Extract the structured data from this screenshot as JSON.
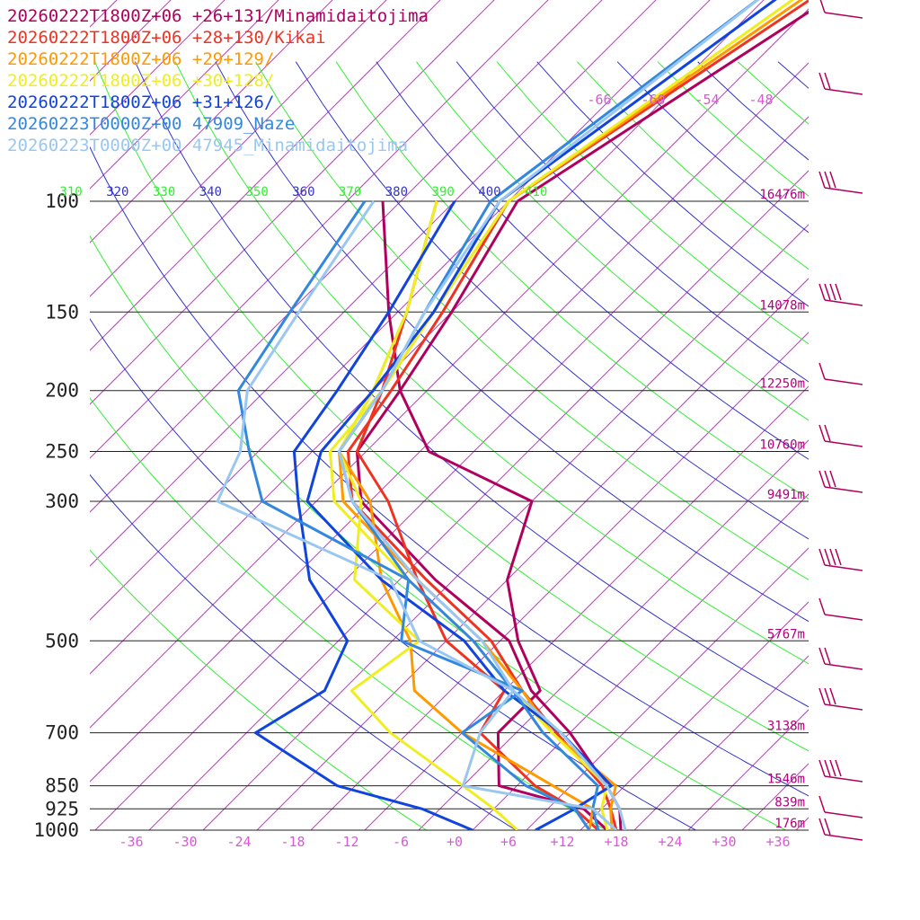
{
  "chart_data": {
    "type": "line",
    "title": "",
    "xlabel": "",
    "ylabel": "",
    "ylim": [
      1000,
      100
    ],
    "xlim": [
      -40,
      40
    ],
    "pressure_levels": [
      {
        "label": "100",
        "p": 100,
        "height": "16476m"
      },
      {
        "label": "150",
        "p": 150,
        "height": "14078m"
      },
      {
        "label": "200",
        "p": 200,
        "height": "12250m"
      },
      {
        "label": "250",
        "p": 250,
        "height": "10760m"
      },
      {
        "label": "300",
        "p": 300,
        "height": "9491m"
      },
      {
        "label": "500",
        "p": 500,
        "height": "5767m"
      },
      {
        "label": "700",
        "p": 700,
        "height": "3138m"
      },
      {
        "label": "850",
        "p": 850,
        "height": "1546m"
      },
      {
        "label": "925",
        "p": 925,
        "height": "839m"
      },
      {
        "label": "1000",
        "p": 1000,
        "height": "176m"
      }
    ],
    "temperature_ticks": [
      "-36",
      "-30",
      "-24",
      "-18",
      "-12",
      "-6",
      "+0",
      "+6",
      "+12",
      "+18",
      "+24",
      "+30",
      "+36"
    ],
    "temperature_tick_values": [
      -36,
      -30,
      -24,
      -18,
      -12,
      -6,
      0,
      6,
      12,
      18,
      24,
      30,
      36
    ],
    "theta_ticks": [
      "310",
      "320",
      "330",
      "340",
      "350",
      "360",
      "370",
      "380",
      "390",
      "400",
      "410"
    ],
    "mixing_ticks": [
      "-66",
      "-60",
      "-54",
      "-48"
    ],
    "grid": true,
    "legend_position": "top-left",
    "series": [
      {
        "name": "20260222T1800Z+06 +26+131/Minamidaitojima",
        "color": "#b0005e",
        "temperature": [
          [
            1000,
            18.5
          ],
          [
            925,
            16
          ],
          [
            850,
            12
          ],
          [
            700,
            2
          ],
          [
            600,
            -7
          ],
          [
            500,
            -15
          ],
          [
            400,
            -30
          ],
          [
            300,
            -47
          ],
          [
            250,
            -53
          ],
          [
            200,
            -55
          ],
          [
            150,
            -58
          ],
          [
            100,
            -63
          ]
        ],
        "dewpoint": [
          [
            1000,
            17
          ],
          [
            925,
            12
          ],
          [
            850,
            0
          ],
          [
            700,
            -6
          ],
          [
            600,
            -6
          ],
          [
            500,
            -14
          ],
          [
            400,
            -22
          ],
          [
            300,
            -28
          ],
          [
            250,
            -45
          ],
          [
            200,
            -55
          ],
          [
            150,
            -65
          ],
          [
            100,
            -78
          ]
        ]
      },
      {
        "name": "20260222T1800Z+06 +28+130/Kikai",
        "color": "#ee3322",
        "temperature": [
          [
            1000,
            18
          ],
          [
            925,
            15
          ],
          [
            850,
            11.5
          ],
          [
            700,
            0.5
          ],
          [
            600,
            -8
          ],
          [
            500,
            -17
          ],
          [
            400,
            -31
          ],
          [
            300,
            -48
          ],
          [
            250,
            -54
          ],
          [
            200,
            -56
          ],
          [
            150,
            -59
          ],
          [
            100,
            -64
          ]
        ],
        "dewpoint": [
          [
            1000,
            16
          ],
          [
            925,
            11
          ],
          [
            850,
            4
          ],
          [
            700,
            -8
          ],
          [
            600,
            -10
          ],
          [
            500,
            -22
          ],
          [
            400,
            -32
          ],
          [
            300,
            -44
          ],
          [
            250,
            -53
          ],
          [
            200,
            -57
          ],
          [
            150,
            -63
          ],
          [
            100,
            -72
          ]
        ]
      },
      {
        "name": "20260222T1800Z+06 +29+129/",
        "color": "#ff9900",
        "temperature": [
          [
            1000,
            17.5
          ],
          [
            925,
            15
          ],
          [
            850,
            13
          ],
          [
            700,
            0
          ],
          [
            600,
            -8
          ],
          [
            500,
            -18
          ],
          [
            400,
            -32
          ],
          [
            300,
            -49
          ],
          [
            250,
            -55
          ],
          [
            200,
            -57
          ],
          [
            150,
            -60
          ],
          [
            100,
            -64
          ]
        ],
        "dewpoint": [
          [
            1000,
            15
          ],
          [
            925,
            13
          ],
          [
            850,
            6
          ],
          [
            700,
            -10
          ],
          [
            600,
            -20
          ],
          [
            500,
            -26
          ],
          [
            400,
            -36
          ],
          [
            300,
            -46
          ],
          [
            250,
            -55
          ],
          [
            200,
            -58
          ],
          [
            150,
            -63
          ],
          [
            100,
            -72
          ]
        ]
      },
      {
        "name": "20260222T1800Z+06 +30+128/",
        "color": "#eeee22",
        "temperature": [
          [
            1000,
            17
          ],
          [
            925,
            14
          ],
          [
            850,
            12
          ],
          [
            700,
            0
          ],
          [
            600,
            -9
          ],
          [
            500,
            -19
          ],
          [
            400,
            -33
          ],
          [
            300,
            -50
          ],
          [
            250,
            -56
          ],
          [
            200,
            -57
          ],
          [
            150,
            -60
          ],
          [
            100,
            -64
          ]
        ],
        "dewpoint": [
          [
            1000,
            7
          ],
          [
            925,
            2
          ],
          [
            850,
            -4
          ],
          [
            700,
            -18
          ],
          [
            600,
            -27
          ],
          [
            500,
            -25
          ],
          [
            400,
            -39
          ],
          [
            300,
            -47
          ],
          [
            250,
            -55
          ],
          [
            200,
            -58
          ],
          [
            150,
            -63
          ],
          [
            100,
            -72
          ]
        ]
      },
      {
        "name": "20260222T1800Z+06 +31+126/",
        "color": "#1144dd",
        "temperature": [
          [
            1000,
            9
          ],
          [
            925,
            11
          ],
          [
            850,
            12.5
          ],
          [
            700,
            1
          ],
          [
            600,
            -10
          ],
          [
            500,
            -20
          ],
          [
            400,
            -36
          ],
          [
            300,
            -53
          ],
          [
            250,
            -57
          ],
          [
            200,
            -58
          ],
          [
            150,
            -60
          ],
          [
            100,
            -65
          ]
        ],
        "dewpoint": [
          [
            1000,
            2
          ],
          [
            925,
            -6
          ],
          [
            850,
            -18
          ],
          [
            700,
            -33
          ],
          [
            600,
            -30
          ],
          [
            500,
            -33
          ],
          [
            400,
            -44
          ],
          [
            300,
            -54
          ],
          [
            250,
            -60
          ],
          [
            200,
            -62
          ],
          [
            150,
            -65
          ],
          [
            100,
            -70
          ]
        ]
      },
      {
        "name": "20260223T0000Z+00 47909_Naze",
        "color": "#3388dd",
        "temperature": [
          [
            1000,
            16
          ],
          [
            925,
            13
          ],
          [
            850,
            11
          ],
          [
            700,
            -1
          ],
          [
            600,
            -9
          ],
          [
            500,
            -19
          ],
          [
            400,
            -33
          ],
          [
            300,
            -48
          ],
          [
            250,
            -55
          ],
          [
            200,
            -57
          ],
          [
            150,
            -61
          ],
          [
            100,
            -66
          ]
        ],
        "dewpoint": [
          [
            1000,
            15
          ],
          [
            925,
            11
          ],
          [
            850,
            3
          ],
          [
            700,
            -10
          ],
          [
            600,
            -8
          ],
          [
            500,
            -27
          ],
          [
            400,
            -33
          ],
          [
            300,
            -58
          ],
          [
            250,
            -65
          ],
          [
            200,
            -73
          ],
          [
            150,
            -76
          ],
          [
            100,
            -80
          ]
        ]
      },
      {
        "name": "20260223T0000Z+00 47945_Minamidaitojima",
        "color": "#99c7f0",
        "temperature": [
          [
            1000,
            19
          ],
          [
            925,
            16
          ],
          [
            850,
            12
          ],
          [
            700,
            1
          ],
          [
            600,
            -9
          ],
          [
            500,
            -18
          ],
          [
            400,
            -32
          ],
          [
            300,
            -48
          ],
          [
            250,
            -55
          ],
          [
            200,
            -57
          ],
          [
            150,
            -61
          ],
          [
            100,
            -65
          ]
        ],
        "dewpoint": [
          [
            1000,
            18
          ],
          [
            925,
            13
          ],
          [
            850,
            -4
          ],
          [
            700,
            -8
          ],
          [
            600,
            -9
          ],
          [
            500,
            -25
          ],
          [
            400,
            -35
          ],
          [
            300,
            -63
          ],
          [
            250,
            -66
          ],
          [
            200,
            -72
          ],
          [
            150,
            -75
          ],
          [
            100,
            -79
          ]
        ]
      }
    ]
  },
  "legend": [
    {
      "label": "20260222T1800Z+06 +26+131/Minamidaitojima",
      "color": "#b0005e"
    },
    {
      "label": "20260222T1800Z+06 +28+130/Kikai",
      "color": "#ee3322"
    },
    {
      "label": "20260222T1800Z+06 +29+129/",
      "color": "#ff9900"
    },
    {
      "label": "20260222T1800Z+06 +30+128/",
      "color": "#eeee22"
    },
    {
      "label": "20260222T1800Z+06 +31+126/",
      "color": "#1144dd"
    },
    {
      "label": "20260223T0000Z+00 47909_Naze",
      "color": "#3388dd"
    },
    {
      "label": "20260223T0000Z+00 47945_Minamidaitojima",
      "color": "#99c7f0"
    }
  ],
  "colors": {
    "isobar": "#222222",
    "isotherm": "#cc33cc",
    "dry_adiabat_green": "#33ee33",
    "dry_adiabat_blue": "#3333cc",
    "height_label": "#b0007a"
  }
}
